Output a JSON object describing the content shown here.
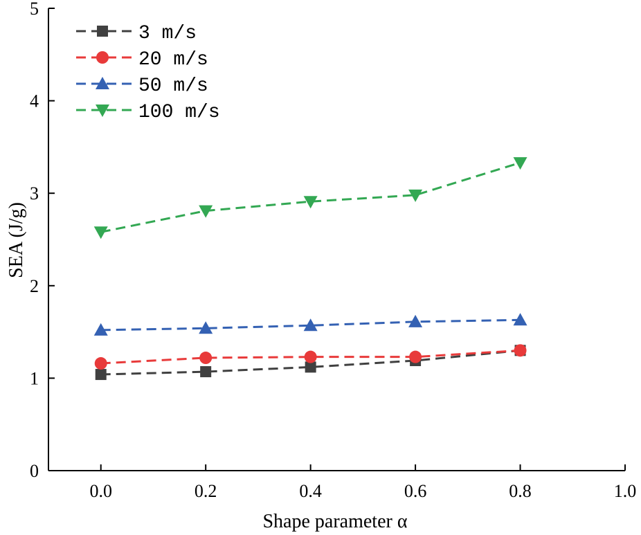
{
  "chart_data": {
    "type": "line",
    "xlabel": "Shape parameter α",
    "ylabel": "SEA (J/g)",
    "xlim": [
      -0.1,
      1.0
    ],
    "ylim": [
      0,
      5
    ],
    "xticks": [
      "0.0",
      "0.2",
      "0.4",
      "0.6",
      "0.8",
      "1.0"
    ],
    "yticks": [
      "0",
      "1",
      "2",
      "3",
      "4",
      "5"
    ],
    "grid": false,
    "legend_position": "top-left",
    "x": [
      0.0,
      0.2,
      0.4,
      0.6,
      0.8
    ],
    "series": [
      {
        "name": "3 m/s",
        "marker": "square",
        "color": "#404040",
        "values": [
          1.04,
          1.07,
          1.12,
          1.19,
          1.3
        ]
      },
      {
        "name": "20 m/s",
        "marker": "circle",
        "color": "#e83a3a",
        "values": [
          1.16,
          1.22,
          1.23,
          1.23,
          1.3
        ]
      },
      {
        "name": "50 m/s",
        "marker": "triangle-up",
        "color": "#3461b3",
        "values": [
          1.52,
          1.54,
          1.57,
          1.61,
          1.63
        ]
      },
      {
        "name": "100 m/s",
        "marker": "triangle-down",
        "color": "#33a853",
        "values": [
          2.58,
          2.81,
          2.91,
          2.98,
          3.33
        ]
      }
    ]
  }
}
